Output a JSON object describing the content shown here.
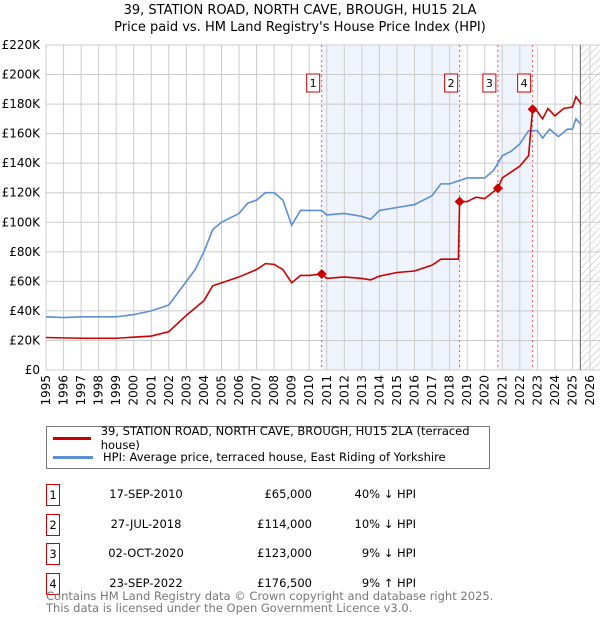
{
  "chart_data": {
    "type": "line",
    "title": "39, STATION ROAD, NORTH CAVE, BROUGH, HU15 2LA",
    "subtitle": "Price paid vs. HM Land Registry's House Price Index (HPI)",
    "xlim": [
      1995,
      2026
    ],
    "ylim": [
      0,
      220000
    ],
    "xticks": [
      "1995",
      "1996",
      "1997",
      "1998",
      "1999",
      "2000",
      "2001",
      "2002",
      "2003",
      "2004",
      "2005",
      "2006",
      "2007",
      "2008",
      "2009",
      "2010",
      "2011",
      "2012",
      "2013",
      "2014",
      "2015",
      "2016",
      "2017",
      "2018",
      "2019",
      "2020",
      "2021",
      "2022",
      "2023",
      "2024",
      "2025",
      "2026"
    ],
    "yticks": [
      "£0",
      "£20K",
      "£40K",
      "£60K",
      "£80K",
      "£100K",
      "£120K",
      "£140K",
      "£160K",
      "£180K",
      "£200K",
      "£220K"
    ],
    "series": [
      {
        "name": "39, STATION ROAD, NORTH CAVE, BROUGH, HU15 2LA (terraced house)",
        "color": "#cc0000",
        "x": [
          1995,
          1997,
          1999,
          2001,
          2002,
          2003,
          2004,
          2004.5,
          2005,
          2006,
          2007,
          2007.5,
          2008,
          2008.5,
          2009,
          2009.5,
          2010,
          2010.71,
          2011,
          2012,
          2013,
          2013.5,
          2014,
          2015,
          2016,
          2017,
          2017.5,
          2018.5,
          2018.57,
          2019,
          2019.5,
          2020,
          2020.75,
          2021,
          2021.5,
          2022,
          2022.5,
          2022.73,
          2023,
          2023.3,
          2023.6,
          2024,
          2024.5,
          2025,
          2025.2,
          2025.5
        ],
        "y": [
          22000,
          21500,
          21500,
          23000,
          26000,
          37000,
          47000,
          57000,
          59000,
          63000,
          68000,
          72000,
          71500,
          68000,
          59000,
          64000,
          64000,
          65000,
          62000,
          63000,
          62000,
          61000,
          63500,
          66000,
          67000,
          71000,
          75000,
          75000,
          114000,
          114000,
          117000,
          116000,
          123000,
          130000,
          134000,
          138000,
          145000,
          176500,
          175000,
          170000,
          177000,
          172000,
          177000,
          178000,
          185000,
          180000
        ]
      },
      {
        "name": "HPI: Average price, terraced house, East Riding of Yorkshire",
        "color": "#5b8fd4",
        "x": [
          1995,
          1996,
          1997,
          1998,
          1999,
          2000,
          2001,
          2002,
          2003,
          2003.5,
          2004,
          2004.5,
          2005,
          2006,
          2006.5,
          2007,
          2007.5,
          2008,
          2008.5,
          2009,
          2009.5,
          2010,
          2010.7,
          2011,
          2012,
          2013,
          2013.5,
          2014,
          2015,
          2016,
          2017,
          2017.5,
          2018,
          2018.5,
          2019,
          2020,
          2020.5,
          2021,
          2021.5,
          2022,
          2022.5,
          2023,
          2023.3,
          2023.7,
          2024.2,
          2024.7,
          2025,
          2025.2,
          2025.5
        ],
        "y": [
          36000,
          35500,
          36000,
          36000,
          36000,
          37500,
          40000,
          44000,
          60000,
          68000,
          80000,
          95000,
          100000,
          106000,
          113000,
          115000,
          120000,
          120000,
          115000,
          98000,
          108000,
          108000,
          108000,
          105000,
          106000,
          104000,
          102000,
          108000,
          110000,
          112000,
          118000,
          126000,
          126000,
          128000,
          130000,
          130000,
          135000,
          145000,
          148000,
          153000,
          162000,
          162000,
          157000,
          163000,
          158000,
          163000,
          163000,
          170000,
          166000
        ]
      }
    ],
    "sales": [
      {
        "id": "1",
        "date": "17-SEP-2010",
        "x": 2010.71,
        "price": "£65,000",
        "value": 65000,
        "hpi": "40% ↓ HPI"
      },
      {
        "id": "2",
        "date": "27-JUL-2018",
        "x": 2018.57,
        "price": "£114,000",
        "value": 114000,
        "hpi": "10% ↓ HPI"
      },
      {
        "id": "3",
        "date": "02-OCT-2020",
        "x": 2020.75,
        "price": "£123,000",
        "value": 123000,
        "hpi": "9% ↓ HPI"
      },
      {
        "id": "4",
        "date": "23-SEP-2022",
        "x": 2022.73,
        "price": "£176,500",
        "value": 176500,
        "hpi": "9% ↑ HPI"
      }
    ],
    "shaded": [
      [
        2010.71,
        2018.57
      ],
      [
        2020.75,
        2022.73
      ]
    ],
    "forecast_from": 2025.45,
    "legend_placement": "below"
  },
  "footer": [
    "Contains HM Land Registry data © Crown copyright and database right 2025.",
    "This data is licensed under the Open Government Licence v3.0."
  ]
}
